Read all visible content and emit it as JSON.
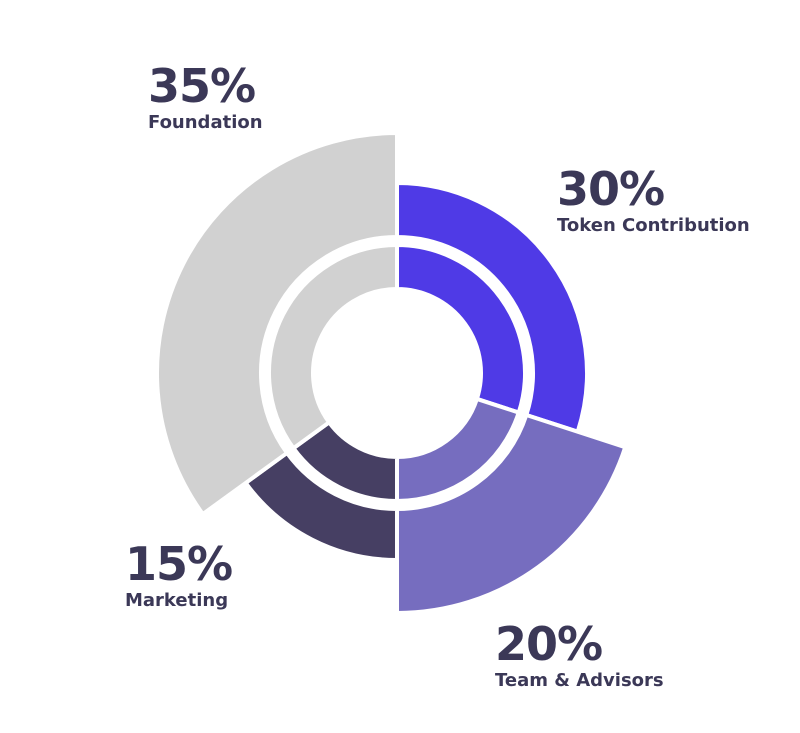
{
  "chart_data": {
    "type": "pie",
    "categories": [
      "Token Contribution",
      "Team & Advisors",
      "Marketing",
      "Foundation"
    ],
    "values": [
      30,
      20,
      15,
      35
    ],
    "value_labels": [
      "30%",
      "20%",
      "15%",
      "35%"
    ],
    "colors": [
      "#4f3ae6",
      "#766dbf",
      "#463f63",
      "#d1d1d1"
    ]
  }
}
